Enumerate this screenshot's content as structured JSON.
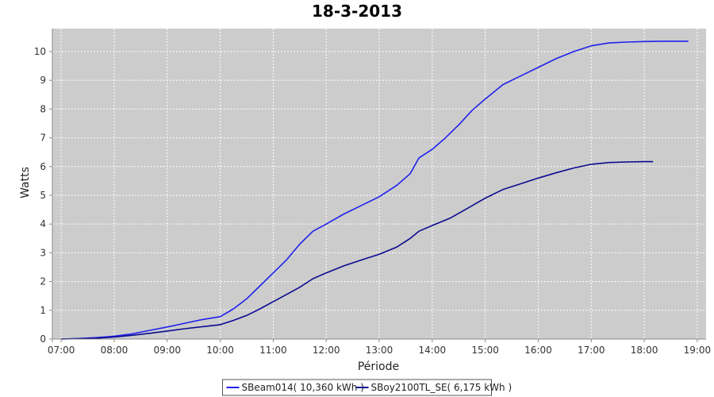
{
  "chart_data": {
    "type": "line",
    "title": "18-3-2013",
    "xlabel": "Période",
    "ylabel": "Watts",
    "xlim": [
      "06:50",
      "19:10"
    ],
    "ylim": [
      0,
      10.8
    ],
    "x_ticks": [
      "07:00",
      "08:00",
      "09:00",
      "10:00",
      "11:00",
      "12:00",
      "13:00",
      "14:00",
      "15:00",
      "16:00",
      "17:00",
      "18:00",
      "19:00"
    ],
    "y_ticks": [
      0,
      1,
      2,
      3,
      4,
      5,
      6,
      7,
      8,
      9,
      10
    ],
    "grid": true,
    "background": "#cccccc",
    "legend_position": "bottom",
    "series": [
      {
        "name": "SBeam014( 10,360 kWh )",
        "color": "#2020ee",
        "x": [
          "07:00",
          "07:20",
          "07:40",
          "08:00",
          "08:20",
          "08:40",
          "09:00",
          "09:20",
          "09:40",
          "10:00",
          "10:15",
          "10:30",
          "10:45",
          "11:00",
          "11:15",
          "11:30",
          "11:45",
          "12:00",
          "12:20",
          "12:40",
          "13:00",
          "13:20",
          "13:35",
          "13:45",
          "14:00",
          "14:15",
          "14:30",
          "14:45",
          "15:00",
          "15:20",
          "15:40",
          "16:00",
          "16:20",
          "16:40",
          "17:00",
          "17:20",
          "17:40",
          "18:00",
          "18:20",
          "18:40",
          "18:50"
        ],
        "y": [
          0,
          0.02,
          0.05,
          0.1,
          0.18,
          0.3,
          0.42,
          0.55,
          0.68,
          0.78,
          1.05,
          1.4,
          1.85,
          2.3,
          2.75,
          3.3,
          3.75,
          4.0,
          4.35,
          4.65,
          4.95,
          5.35,
          5.75,
          6.3,
          6.6,
          7.0,
          7.45,
          7.95,
          8.35,
          8.85,
          9.15,
          9.45,
          9.75,
          10.0,
          10.2,
          10.3,
          10.33,
          10.35,
          10.36,
          10.36,
          10.36
        ]
      },
      {
        "name": "SBoy2100TL_SE( 6,175 kWh )",
        "color": "#0a0a90",
        "x": [
          "07:00",
          "07:20",
          "07:40",
          "08:00",
          "08:20",
          "08:40",
          "09:00",
          "09:20",
          "09:40",
          "10:00",
          "10:15",
          "10:30",
          "10:45",
          "11:00",
          "11:15",
          "11:30",
          "11:45",
          "12:00",
          "12:20",
          "12:40",
          "13:00",
          "13:20",
          "13:35",
          "13:45",
          "14:00",
          "14:20",
          "14:40",
          "15:00",
          "15:20",
          "15:40",
          "16:00",
          "16:20",
          "16:40",
          "17:00",
          "17:20",
          "17:40",
          "18:00",
          "18:10"
        ],
        "y": [
          0,
          0.01,
          0.03,
          0.07,
          0.13,
          0.2,
          0.28,
          0.36,
          0.43,
          0.5,
          0.65,
          0.82,
          1.05,
          1.3,
          1.55,
          1.8,
          2.1,
          2.3,
          2.55,
          2.75,
          2.95,
          3.2,
          3.5,
          3.75,
          3.95,
          4.2,
          4.55,
          4.9,
          5.2,
          5.4,
          5.6,
          5.78,
          5.95,
          6.08,
          6.14,
          6.16,
          6.17,
          6.17
        ]
      }
    ]
  }
}
